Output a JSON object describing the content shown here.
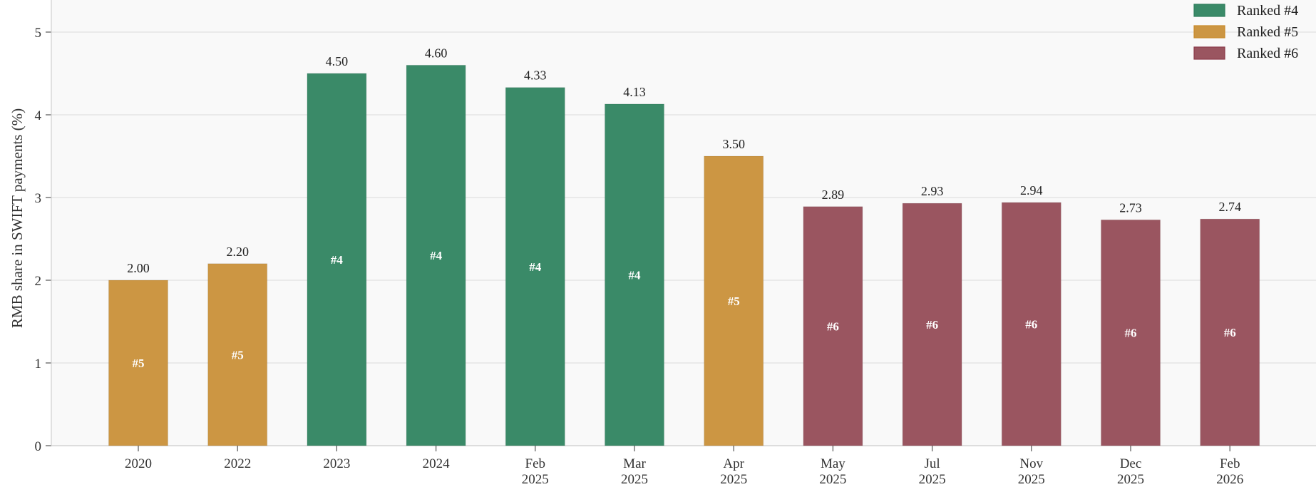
{
  "chart_data": {
    "type": "bar",
    "ylabel": "RMB share in SWIFT payments (%)",
    "xlabel": "",
    "title": "",
    "ylim": [
      0,
      5.3
    ],
    "yticks": [
      0,
      1,
      2,
      3,
      4,
      5
    ],
    "grid": true,
    "legend_position": "top-right",
    "categories": [
      [
        "2020"
      ],
      [
        "2022"
      ],
      [
        "2023"
      ],
      [
        "2024"
      ],
      [
        "Feb",
        "2025"
      ],
      [
        "Mar",
        "2025"
      ],
      [
        "Apr",
        "2025"
      ],
      [
        "May",
        "2025"
      ],
      [
        "Jul",
        "2025"
      ],
      [
        "Nov",
        "2025"
      ],
      [
        "Dec",
        "2025"
      ],
      [
        "Feb",
        "2026"
      ]
    ],
    "values": [
      2.0,
      2.2,
      4.5,
      4.6,
      4.33,
      4.13,
      3.5,
      2.89,
      2.93,
      2.94,
      2.73,
      2.74
    ],
    "value_labels": [
      "2.00",
      "2.20",
      "4.50",
      "4.60",
      "4.33",
      "4.13",
      "3.50",
      "2.89",
      "2.93",
      "2.94",
      "2.73",
      "2.74"
    ],
    "ranks": [
      5,
      5,
      4,
      4,
      4,
      4,
      5,
      6,
      6,
      6,
      6,
      6
    ],
    "rank_labels": [
      "#5",
      "#5",
      "#4",
      "#4",
      "#4",
      "#4",
      "#5",
      "#6",
      "#6",
      "#6",
      "#6",
      "#6"
    ],
    "legend": [
      {
        "rank": 4,
        "label": "Ranked #4",
        "color": "#2e7d5b"
      },
      {
        "rank": 5,
        "label": "Ranked #5",
        "color": "#c88a2a"
      },
      {
        "rank": 6,
        "label": "Ranked #6",
        "color": "#8b3a4a"
      }
    ],
    "colors": {
      "rank4": "#3a8a68",
      "rank5": "#cc9643",
      "rank6": "#9a5560",
      "plot_background": "#f9f9f9",
      "grid": "#e2e2e2"
    }
  }
}
